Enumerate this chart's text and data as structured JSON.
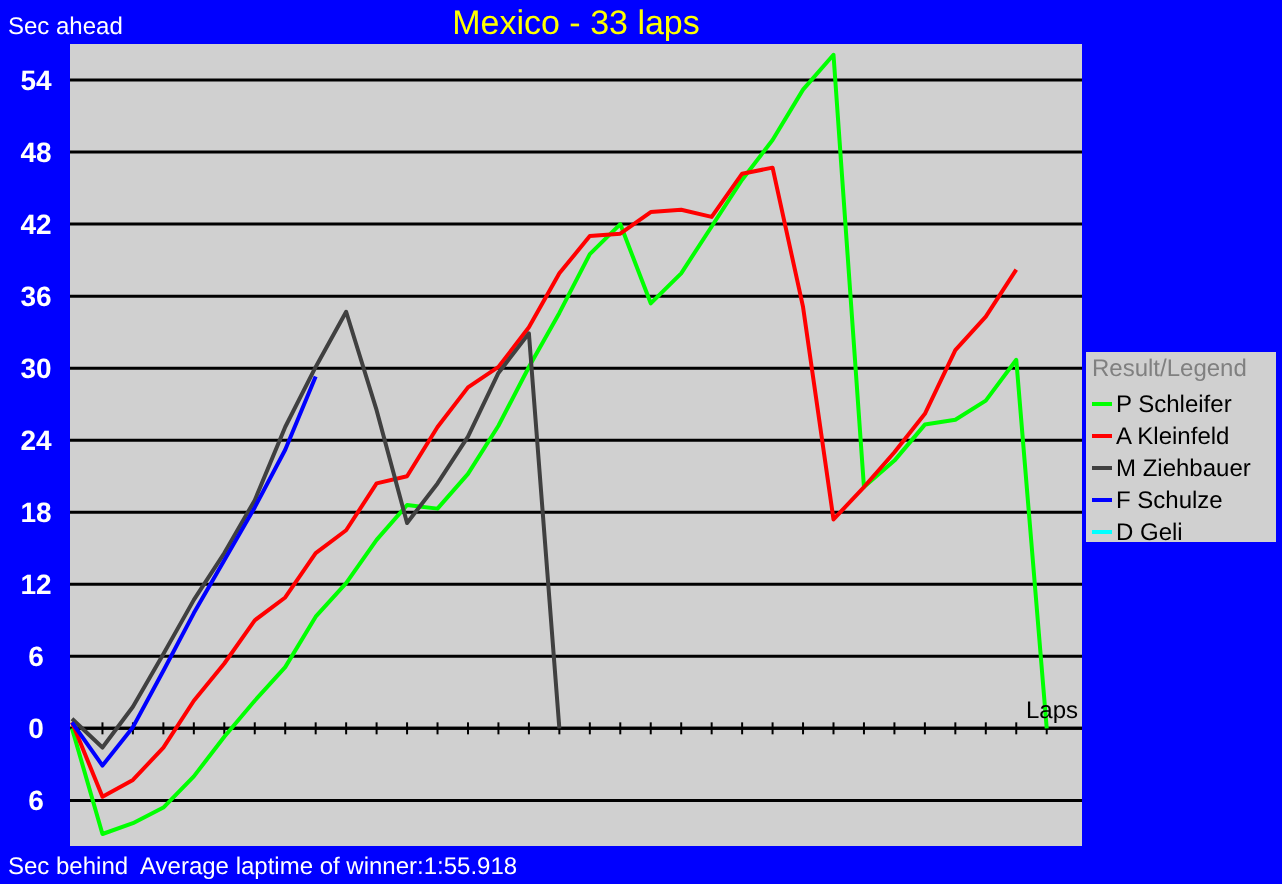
{
  "chart_data": {
    "type": "line",
    "title": "Mexico - 33 laps",
    "ylabel": "Sec ahead",
    "xlabel": "Laps",
    "legend_title": "Result/Legend",
    "annotations": [
      "Sec behind",
      "Average laptime of winner:1:55.918"
    ],
    "categories": [
      null,
      null,
      null,
      null,
      null,
      null,
      null,
      null,
      null,
      null,
      null,
      null,
      null,
      null,
      null,
      null,
      null,
      null,
      null,
      null,
      null,
      null,
      null,
      null,
      null,
      null,
      null,
      null,
      null,
      null,
      null,
      null,
      null
    ],
    "series": [
      {
        "name": "P Schleifer",
        "color": "#00ff00",
        "values": [
          0,
          -8.8,
          -7.9,
          -6.6,
          -4,
          -0.7,
          2.3,
          5.1,
          9.3,
          12.1,
          15.7,
          18.6,
          18.3,
          21.2,
          25.2,
          30.1,
          34.6,
          39.5,
          42,
          35.4,
          37.9,
          41.8,
          45.7,
          49,
          53.2,
          56.1,
          20.1,
          22.3,
          25.3,
          25.7,
          27.3,
          30.7,
          0
        ]
      },
      {
        "name": "A Kleinfeld",
        "color": "#ff0000",
        "values": [
          0.5,
          -5.7,
          -4.3,
          -1.6,
          2.3,
          5.4,
          9,
          10.9,
          14.6,
          16.5,
          20.4,
          21,
          25.1,
          28.4,
          30.1,
          33.4,
          37.9,
          41,
          41.2,
          43,
          43.2,
          42.6,
          46.2,
          46.7,
          35.1,
          17.4,
          20.1,
          23,
          26.2,
          31.5,
          34.3,
          38.2,
          null
        ]
      },
      {
        "name": "M Ziehbauer",
        "color": "#404040",
        "values": [
          0.8,
          -1.6,
          1.8,
          6.2,
          10.7,
          14.6,
          19,
          25.1,
          30.1,
          34.7,
          26.5,
          17.1,
          20.4,
          24.3,
          29.6,
          32.9,
          0,
          null,
          null,
          null,
          null,
          null,
          null,
          null,
          null,
          null,
          null,
          null,
          null,
          null,
          null,
          null,
          null
        ]
      },
      {
        "name": "F Schulze",
        "color": "#0000ff",
        "values": [
          0.5,
          -3.1,
          0.1,
          4.8,
          9.6,
          14,
          18.4,
          23.2,
          29.3,
          null,
          null,
          null,
          null,
          null,
          null,
          null,
          null,
          null,
          null,
          null,
          null,
          null,
          null,
          null,
          null,
          null,
          null,
          null,
          null,
          null,
          null,
          null,
          null
        ]
      },
      {
        "name": "D Geli",
        "color": "#00ffff",
        "values": [
          null,
          null,
          null,
          null,
          null,
          null,
          null,
          null,
          null,
          null,
          null,
          null,
          null,
          null,
          null,
          null,
          null,
          null,
          null,
          null,
          null,
          null,
          null,
          null,
          null,
          null,
          null,
          null,
          null,
          null,
          null,
          null,
          null
        ]
      }
    ],
    "ylim": [
      -9.8,
      57
    ],
    "yticks": [
      {
        "value": -6,
        "label": "6"
      },
      0,
      6,
      12,
      18,
      24,
      30,
      36,
      42,
      48,
      54
    ],
    "tick_labels": "y",
    "grid": "y",
    "legend": "right",
    "marker": "none",
    "line_style": "solid"
  }
}
